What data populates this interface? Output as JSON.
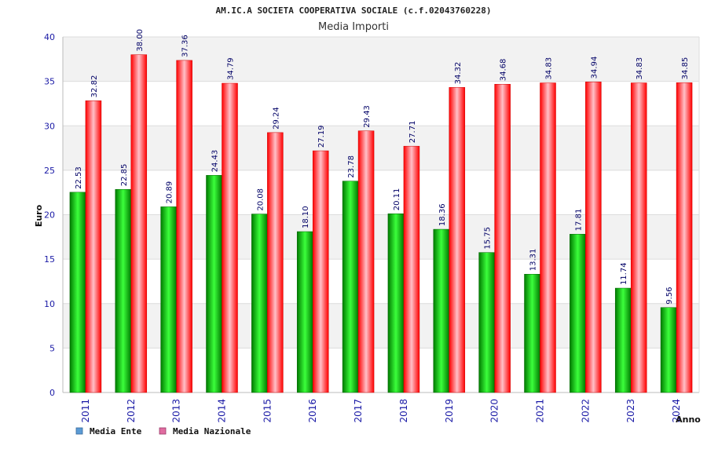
{
  "chart_data": {
    "type": "bar",
    "title": "AM.IC.A SOCIETA COOPERATIVA SOCIALE (c.f.02043760228)",
    "subtitle": "Media Importi",
    "xlabel": "Anno",
    "ylabel": "Euro",
    "ylim": [
      0,
      40
    ],
    "yticks": [
      0,
      5,
      10,
      15,
      20,
      25,
      30,
      35,
      40
    ],
    "categories": [
      "2011",
      "2012",
      "2013",
      "2014",
      "2015",
      "2016",
      "2017",
      "2018",
      "2019",
      "2020",
      "2021",
      "2022",
      "2023",
      "2024"
    ],
    "series": [
      {
        "name": "Media Ente",
        "values": [
          22.53,
          22.85,
          20.89,
          24.43,
          20.08,
          18.1,
          23.78,
          20.11,
          18.36,
          15.75,
          13.31,
          17.81,
          11.74,
          9.56
        ],
        "labels": [
          "22.53",
          "22.85",
          "20.89",
          "24.43",
          "20.08",
          "18.10",
          "23.78",
          "20.11",
          "18.36",
          "15.75",
          "13.31",
          "17.81",
          "11.74",
          "9.56"
        ]
      },
      {
        "name": "Media Nazionale",
        "values": [
          32.82,
          38.0,
          37.36,
          34.79,
          29.24,
          27.19,
          29.43,
          27.71,
          34.32,
          34.68,
          34.83,
          34.94,
          34.83,
          34.85
        ],
        "labels": [
          "32.82",
          "38.00",
          "37.36",
          "34.79",
          "29.24",
          "27.19",
          "29.43",
          "27.71",
          "34.32",
          "34.68",
          "34.83",
          "34.94",
          "34.83",
          "34.85"
        ]
      }
    ],
    "legend": [
      {
        "name": "Media Ente",
        "color": "#5b9bd5"
      },
      {
        "name": "Media Nazionale",
        "color": "#e06ca0"
      }
    ],
    "legend_position": "bottom-left",
    "grid": true
  },
  "colors": {
    "green_dark": "#007a00",
    "green_light": "#3bff3b",
    "red_dark": "#ff0000",
    "red_light": "#ffc0c8",
    "band": "#f2f2f2"
  }
}
